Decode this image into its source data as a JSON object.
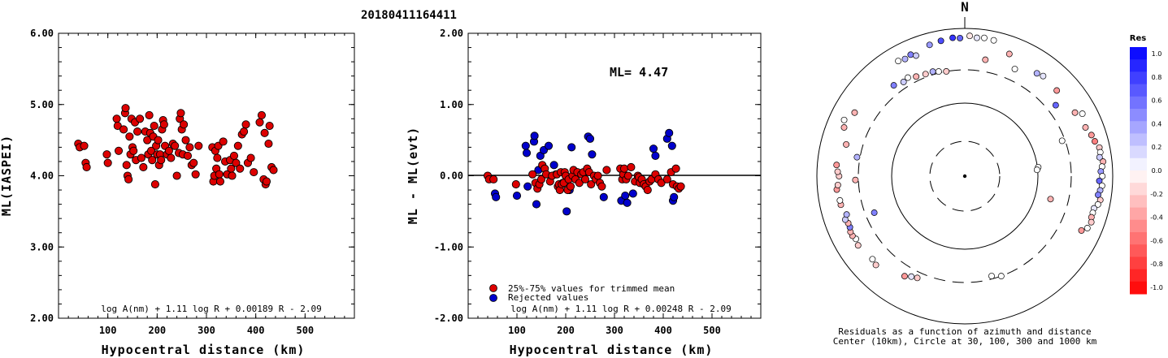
{
  "event_id": "20180411164411",
  "chart_data": [
    {
      "type": "scatter",
      "name": "left",
      "ylabel": "ML(IASPEI)",
      "xlabel": "Hypocentral distance (km)",
      "xlim": [
        0,
        600
      ],
      "ylim": [
        2.0,
        6.0
      ],
      "xticks": [
        "100",
        "200",
        "300",
        "400",
        "500"
      ],
      "yticks": [
        "2.00",
        "3.00",
        "4.00",
        "5.00",
        "6.00"
      ],
      "formula": "log A(nm) + 1.11 log R + 0.00189 R - 2.09",
      "marker_color": "#dd0000",
      "points": [
        [
          40,
          4.45
        ],
        [
          43,
          4.4
        ],
        [
          52,
          4.42
        ],
        [
          55,
          4.18
        ],
        [
          57,
          4.12
        ],
        [
          98,
          4.3
        ],
        [
          100,
          4.18
        ],
        [
          118,
          4.8
        ],
        [
          120,
          4.7
        ],
        [
          122,
          4.35
        ],
        [
          132,
          4.65
        ],
        [
          135,
          4.88
        ],
        [
          136,
          4.95
        ],
        [
          138,
          4.15
        ],
        [
          140,
          4.0
        ],
        [
          142,
          3.95
        ],
        [
          144,
          4.55
        ],
        [
          146,
          4.3
        ],
        [
          148,
          4.8
        ],
        [
          150,
          4.4
        ],
        [
          152,
          4.35
        ],
        [
          155,
          4.75
        ],
        [
          157,
          4.22
        ],
        [
          160,
          4.62
        ],
        [
          165,
          4.8
        ],
        [
          168,
          4.25
        ],
        [
          172,
          4.12
        ],
        [
          176,
          4.62
        ],
        [
          180,
          4.5
        ],
        [
          182,
          4.3
        ],
        [
          184,
          4.85
        ],
        [
          186,
          4.6
        ],
        [
          188,
          4.35
        ],
        [
          190,
          4.22
        ],
        [
          192,
          4.55
        ],
        [
          194,
          4.7
        ],
        [
          196,
          3.88
        ],
        [
          198,
          4.42
        ],
        [
          200,
          4.3
        ],
        [
          202,
          4.5
        ],
        [
          204,
          4.15
        ],
        [
          206,
          4.3
        ],
        [
          208,
          4.22
        ],
        [
          210,
          4.65
        ],
        [
          212,
          4.78
        ],
        [
          214,
          4.72
        ],
        [
          216,
          4.42
        ],
        [
          220,
          4.3
        ],
        [
          224,
          4.35
        ],
        [
          228,
          4.25
        ],
        [
          232,
          4.45
        ],
        [
          236,
          4.42
        ],
        [
          240,
          4.0
        ],
        [
          244,
          4.32
        ],
        [
          246,
          4.8
        ],
        [
          248,
          4.88
        ],
        [
          250,
          4.65
        ],
        [
          252,
          4.3
        ],
        [
          254,
          4.72
        ],
        [
          258,
          4.5
        ],
        [
          262,
          4.28
        ],
        [
          266,
          4.4
        ],
        [
          270,
          4.15
        ],
        [
          274,
          4.18
        ],
        [
          278,
          4.02
        ],
        [
          284,
          4.42
        ],
        [
          312,
          4.4
        ],
        [
          314,
          3.92
        ],
        [
          316,
          4.0
        ],
        [
          318,
          4.35
        ],
        [
          320,
          4.1
        ],
        [
          322,
          4.25
        ],
        [
          324,
          4.42
        ],
        [
          326,
          4.02
        ],
        [
          328,
          3.92
        ],
        [
          334,
          4.48
        ],
        [
          338,
          4.2
        ],
        [
          342,
          4.02
        ],
        [
          348,
          4.22
        ],
        [
          350,
          4.1
        ],
        [
          352,
          4.0
        ],
        [
          356,
          4.28
        ],
        [
          360,
          4.18
        ],
        [
          364,
          4.42
        ],
        [
          368,
          4.1
        ],
        [
          372,
          4.58
        ],
        [
          376,
          4.62
        ],
        [
          380,
          4.72
        ],
        [
          384,
          4.18
        ],
        [
          390,
          4.25
        ],
        [
          396,
          4.05
        ],
        [
          408,
          4.75
        ],
        [
          412,
          4.85
        ],
        [
          416,
          3.95
        ],
        [
          418,
          4.6
        ],
        [
          420,
          3.88
        ],
        [
          422,
          3.92
        ],
        [
          426,
          4.45
        ],
        [
          428,
          4.7
        ],
        [
          432,
          4.12
        ],
        [
          436,
          4.08
        ]
      ]
    },
    {
      "type": "scatter",
      "name": "middle",
      "ylabel": "ML - ML(evt)",
      "xlabel": "Hypocentral distance (km)",
      "xlim": [
        0,
        600
      ],
      "ylim": [
        -2.0,
        2.0
      ],
      "xticks": [
        "100",
        "200",
        "300",
        "400",
        "500"
      ],
      "yticks": [
        "-2.00",
        "-1.00",
        "0.00",
        "1.00",
        "2.00"
      ],
      "annotation": "ML= 4.47",
      "formula": "log A(nm) + 1.11 log R + 0.00248 R - 2.09",
      "legend": [
        {
          "label": "25%-75% values for trimmed mean",
          "color": "#dd0000"
        },
        {
          "label": "Rejected values",
          "color": "#0000cc"
        }
      ],
      "points_trimmed": [
        [
          40,
          0.0
        ],
        [
          43,
          -0.05
        ],
        [
          52,
          -0.05
        ],
        [
          98,
          -0.12
        ],
        [
          132,
          0.02
        ],
        [
          138,
          -0.1
        ],
        [
          142,
          -0.18
        ],
        [
          146,
          -0.12
        ],
        [
          150,
          -0.05
        ],
        [
          152,
          0.15
        ],
        [
          157,
          0.1
        ],
        [
          160,
          0.02
        ],
        [
          168,
          -0.08
        ],
        [
          172,
          0.0
        ],
        [
          182,
          0.02
        ],
        [
          184,
          -0.15
        ],
        [
          186,
          -0.12
        ],
        [
          188,
          -0.2
        ],
        [
          190,
          0.05
        ],
        [
          192,
          -0.12
        ],
        [
          196,
          -0.1
        ],
        [
          198,
          0.05
        ],
        [
          200,
          0.0
        ],
        [
          204,
          -0.2
        ],
        [
          206,
          -0.05
        ],
        [
          210,
          -0.15
        ],
        [
          214,
          0.0
        ],
        [
          216,
          0.08
        ],
        [
          220,
          -0.05
        ],
        [
          224,
          0.05
        ],
        [
          228,
          -0.1
        ],
        [
          232,
          0.02
        ],
        [
          236,
          0.05
        ],
        [
          240,
          -0.05
        ],
        [
          244,
          0.1
        ],
        [
          248,
          0.05
        ],
        [
          252,
          -0.12
        ],
        [
          258,
          0.0
        ],
        [
          262,
          -0.05
        ],
        [
          266,
          0.0
        ],
        [
          270,
          -0.1
        ],
        [
          274,
          -0.15
        ],
        [
          284,
          0.08
        ],
        [
          312,
          0.1
        ],
        [
          316,
          -0.05
        ],
        [
          318,
          0.02
        ],
        [
          320,
          0.1
        ],
        [
          324,
          -0.05
        ],
        [
          328,
          0.0
        ],
        [
          334,
          0.12
        ],
        [
          342,
          -0.08
        ],
        [
          348,
          0.0
        ],
        [
          350,
          -0.02
        ],
        [
          352,
          -0.1
        ],
        [
          356,
          -0.05
        ],
        [
          360,
          -0.12
        ],
        [
          364,
          -0.15
        ],
        [
          368,
          -0.2
        ],
        [
          372,
          -0.08
        ],
        [
          376,
          -0.05
        ],
        [
          384,
          0.02
        ],
        [
          390,
          -0.05
        ],
        [
          396,
          -0.1
        ],
        [
          408,
          -0.05
        ],
        [
          416,
          0.05
        ],
        [
          420,
          -0.12
        ],
        [
          426,
          0.1
        ],
        [
          428,
          -0.15
        ],
        [
          432,
          -0.18
        ],
        [
          436,
          -0.15
        ]
      ],
      "points_rejected": [
        [
          55,
          -0.25
        ],
        [
          57,
          -0.3
        ],
        [
          100,
          -0.28
        ],
        [
          118,
          0.42
        ],
        [
          120,
          0.32
        ],
        [
          122,
          -0.15
        ],
        [
          135,
          0.48
        ],
        [
          136,
          0.56
        ],
        [
          140,
          -0.4
        ],
        [
          144,
          0.08
        ],
        [
          148,
          0.28
        ],
        [
          155,
          0.36
        ],
        [
          165,
          0.42
        ],
        [
          176,
          0.15
        ],
        [
          180,
          0.02
        ],
        [
          194,
          -0.1
        ],
        [
          202,
          -0.5
        ],
        [
          208,
          -0.2
        ],
        [
          212,
          0.4
        ],
        [
          246,
          0.55
        ],
        [
          250,
          0.52
        ],
        [
          254,
          0.3
        ],
        [
          278,
          -0.3
        ],
        [
          314,
          -0.35
        ],
        [
          322,
          -0.28
        ],
        [
          326,
          -0.38
        ],
        [
          338,
          -0.25
        ],
        [
          380,
          0.38
        ],
        [
          384,
          0.28
        ],
        [
          408,
          0.52
        ],
        [
          412,
          0.6
        ],
        [
          418,
          0.42
        ],
        [
          420,
          -0.35
        ],
        [
          422,
          -0.3
        ]
      ]
    },
    {
      "type": "scatter",
      "name": "polar",
      "north_label": "N",
      "caption_line1": "Residuals as a function of azimuth and distance",
      "caption_line2": "Center (10km), Circle at 30, 100, 300 and 1000 km",
      "colorbar_title": "Res",
      "colorbar_ticks": [
        "1.0",
        "0.8",
        "0.6",
        "0.4",
        "0.2",
        "0.0",
        "-0.2",
        "-0.4",
        "-0.6",
        "-0.8",
        "-1.0"
      ],
      "colorbar_high": "#0000ff",
      "colorbar_low": "#ff0000",
      "stations": [
        [
          345,
          0.92,
          0.4
        ],
        [
          350,
          0.93,
          0.7
        ],
        [
          355,
          0.94,
          0.8
        ],
        [
          358,
          0.935,
          0.6
        ],
        [
          2,
          0.95,
          -0.1
        ],
        [
          5,
          0.94,
          0.1
        ],
        [
          8,
          0.945,
          0.0
        ],
        [
          12,
          0.94,
          0.0
        ],
        [
          20,
          0.88,
          -0.3
        ],
        [
          35,
          0.85,
          0.3
        ],
        [
          38,
          0.86,
          0.1
        ],
        [
          10,
          0.8,
          -0.3
        ],
        [
          25,
          0.8,
          0.0
        ],
        [
          330,
          0.9,
          0.0
        ],
        [
          333,
          0.89,
          0.3
        ],
        [
          336,
          0.9,
          0.5
        ],
        [
          338,
          0.88,
          0.2
        ],
        [
          322,
          0.78,
          0.5
        ],
        [
          327,
          0.76,
          0.2
        ],
        [
          330,
          0.77,
          0.0
        ],
        [
          334,
          0.75,
          -0.3
        ],
        [
          339,
          0.74,
          -0.2
        ],
        [
          343,
          0.74,
          0.3
        ],
        [
          346,
          0.73,
          0.0
        ],
        [
          350,
          0.72,
          -0.2
        ],
        [
          52,
          0.78,
          0.6
        ],
        [
          60,
          0.86,
          -0.3
        ],
        [
          62,
          0.9,
          0.0
        ],
        [
          47,
          0.85,
          -0.4
        ],
        [
          70,
          0.7,
          0.0
        ],
        [
          68,
          0.88,
          -0.3
        ],
        [
          72,
          0.9,
          -0.4
        ],
        [
          75,
          0.91,
          -0.5
        ],
        [
          78,
          0.93,
          -0.2
        ],
        [
          80,
          0.93,
          0.0
        ],
        [
          82,
          0.92,
          0.2
        ],
        [
          84,
          0.94,
          -0.3
        ],
        [
          86,
          0.93,
          0.0
        ],
        [
          88,
          0.92,
          0.4
        ],
        [
          90,
          0.93,
          0.0
        ],
        [
          92,
          0.91,
          0.6
        ],
        [
          94,
          0.93,
          0.0
        ],
        [
          96,
          0.92,
          0.3
        ],
        [
          98,
          0.91,
          0.5
        ],
        [
          100,
          0.93,
          -0.2
        ],
        [
          102,
          0.92,
          0.0
        ],
        [
          104,
          0.9,
          0.1
        ],
        [
          106,
          0.9,
          0.0
        ],
        [
          108,
          0.9,
          -0.3
        ],
        [
          110,
          0.91,
          -0.2
        ],
        [
          113,
          0.9,
          0.0
        ],
        [
          83,
          0.5,
          0.0
        ],
        [
          85,
          0.49,
          0.0
        ],
        [
          105,
          0.6,
          -0.3
        ],
        [
          115,
          0.87,
          -0.4
        ],
        [
          160,
          0.72,
          0.0
        ],
        [
          165,
          0.7,
          0.0
        ],
        [
          205,
          0.76,
          -0.2
        ],
        [
          208,
          0.77,
          0.1
        ],
        [
          211,
          0.79,
          -0.4
        ],
        [
          225,
          0.85,
          -0.2
        ],
        [
          228,
          0.84,
          0.0
        ],
        [
          237,
          0.86,
          -0.2
        ],
        [
          240,
          0.85,
          0.0
        ],
        [
          242,
          0.86,
          -0.3
        ],
        [
          244,
          0.86,
          -0.3
        ],
        [
          246,
          0.85,
          0.5
        ],
        [
          248,
          0.85,
          -0.3
        ],
        [
          250,
          0.86,
          0.2
        ],
        [
          252,
          0.84,
          0.3
        ],
        [
          257,
          0.86,
          -0.3
        ],
        [
          259,
          0.86,
          0.0
        ],
        [
          264,
          0.87,
          -0.4
        ],
        [
          266,
          0.86,
          -0.2
        ],
        [
          270,
          0.85,
          -0.2
        ],
        [
          272,
          0.86,
          -0.2
        ],
        [
          275,
          0.87,
          -0.4
        ],
        [
          248,
          0.66,
          0.5
        ],
        [
          268,
          0.74,
          -0.3
        ],
        [
          280,
          0.74,
          0.3
        ],
        [
          285,
          0.83,
          -0.3
        ],
        [
          292,
          0.88,
          -0.3
        ],
        [
          295,
          0.9,
          0.0
        ],
        [
          300,
          0.86,
          -0.3
        ]
      ]
    }
  ]
}
